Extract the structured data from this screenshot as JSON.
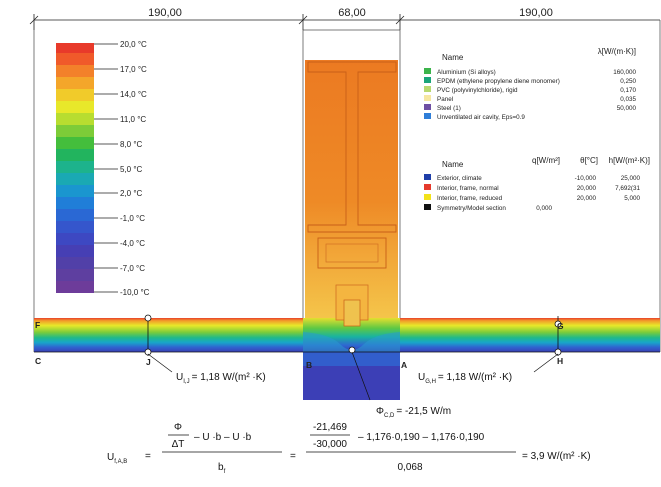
{
  "dimensions": {
    "left": "190,00",
    "middle": "68,00",
    "right": "190,00"
  },
  "temperature_scale": {
    "unit": "°C",
    "labels": [
      "20,0",
      "17,0",
      "14,0",
      "11,0",
      "8,0",
      "5,0",
      "2,0",
      "-1,0",
      "-4,0",
      "-7,0",
      "-10,0"
    ]
  },
  "materials": {
    "header_name": "Name",
    "header_lambda": "λ[W/(m·K)]",
    "items": [
      {
        "name": "Aluminium (Si alloys)",
        "value": "160,000",
        "color": "#3cb44b"
      },
      {
        "name": "EPDM (ethylene propylene diene monomer)",
        "value": "0,250",
        "color": "#1aa57a"
      },
      {
        "name": "PVC (polyvinylchloride), rigid",
        "value": "0,170",
        "color": "#b8d86f"
      },
      {
        "name": "Panel",
        "value": "0,035",
        "color": "#f6e7a1"
      },
      {
        "name": "Steel (1)",
        "value": "50,000",
        "color": "#6e4fa3"
      },
      {
        "name": "Unventilated air cavity, Eps=0.9",
        "value": "",
        "color": "#2f7ed8"
      }
    ]
  },
  "boundaries": {
    "header_name": "Name",
    "header_q": "q[W/m²]",
    "header_theta": "θ[°C]",
    "header_h": "h[W/(m²·K)]",
    "items": [
      {
        "name": "Exterior, climate",
        "q": "",
        "theta": "-10,000",
        "h": "25,000",
        "color": "#1f3ea8"
      },
      {
        "name": "Interior, frame, normal",
        "q": "",
        "theta": "20,000",
        "h": "7,692(31",
        "color": "#e53a2c"
      },
      {
        "name": "Interior, frame, reduced",
        "q": "",
        "theta": "20,000",
        "h": "5,000",
        "color": "#f2e21a"
      },
      {
        "name": "Symmetry/Model section",
        "q": "0,000",
        "theta": "",
        "h": "",
        "color": "#111111"
      }
    ]
  },
  "points": {
    "F": "F",
    "G": "G",
    "C": "C",
    "J": "J",
    "B": "B",
    "A": "A",
    "H": "H"
  },
  "u_values": {
    "left": {
      "symbol": "U",
      "subscript": "I,J",
      "value": "= 1,18 W/(m² ·K)"
    },
    "right": {
      "symbol": "U",
      "subscript": "G,H",
      "value": "= 1,18 W/(m² ·K)"
    },
    "phi": {
      "symbol": "Φ",
      "subscript": "C,D",
      "value": "= -21,5 W/m"
    }
  },
  "formula": {
    "lhs": "U",
    "lhs_sub": "f,A,B",
    "eq": "=",
    "num_phi": "Φ",
    "num_dt": "ΔT",
    "num_terms": "–  U  ·b  –  U  ·b",
    "den_b": "b",
    "den_sub": "f",
    "num_value": "-21,469",
    "den_value_inner": "-30,000",
    "rest": "–  1,176·0,190  –  1,176·0,190",
    "den_value": "0,068",
    "result": "=  3,9 W/(m² ·K)"
  }
}
